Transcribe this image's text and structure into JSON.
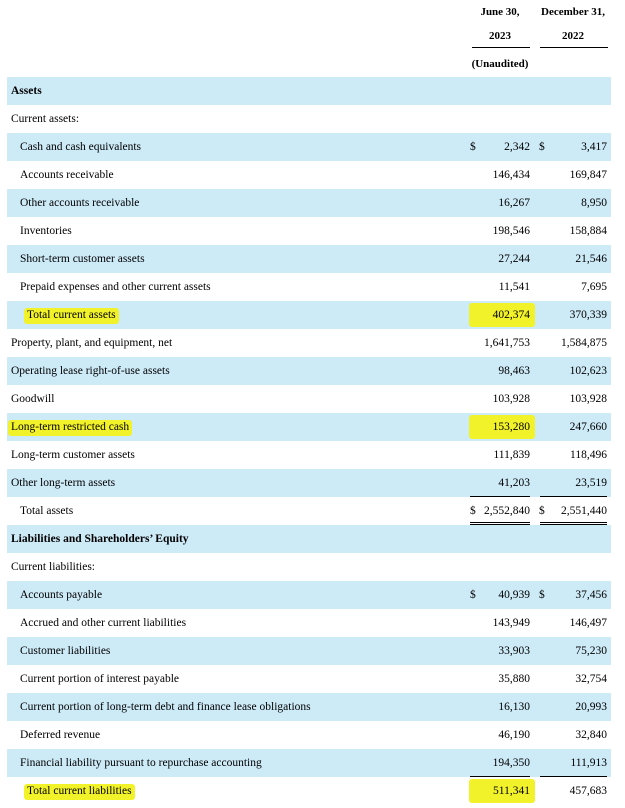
{
  "header": {
    "col1_line1": "June 30,",
    "col1_line2": "2023",
    "col1_note": "(Unaudited)",
    "col2_line1": "December 31,",
    "col2_line2": "2022"
  },
  "rows": [
    {
      "label": "Assets",
      "bold": true,
      "shade": true,
      "indent": 0
    },
    {
      "label": "Current assets:",
      "indent": 0
    },
    {
      "label": "Cash and cash equivalents",
      "shade": true,
      "indent": 1,
      "d1": "$",
      "v1": "2,342",
      "d2": "$",
      "v2": "3,417"
    },
    {
      "label": "Accounts receivable",
      "indent": 1,
      "v1": "146,434",
      "v2": "169,847"
    },
    {
      "label": "Other accounts receivable",
      "shade": true,
      "indent": 1,
      "v1": "16,267",
      "v2": "8,950"
    },
    {
      "label": "Inventories",
      "indent": 1,
      "v1": "198,546",
      "v2": "158,884"
    },
    {
      "label": "Short-term customer assets",
      "shade": true,
      "indent": 1,
      "v1": "27,244",
      "v2": "21,546"
    },
    {
      "label": "Prepaid expenses and other current assets",
      "indent": 1,
      "v1": "11,541",
      "v2": "7,695"
    },
    {
      "label": "Total current assets",
      "shade": true,
      "indent": 2,
      "v1": "402,374",
      "v2": "370,339",
      "highlight_label": true,
      "highlight_v1": true
    },
    {
      "label": "Property, plant, and equipment, net",
      "indent": 0,
      "v1": "1,641,753",
      "v2": "1,584,875"
    },
    {
      "label": "Operating lease right-of-use assets",
      "shade": true,
      "indent": 0,
      "v1": "98,463",
      "v2": "102,623"
    },
    {
      "label": "Goodwill",
      "indent": 0,
      "v1": "103,928",
      "v2": "103,928"
    },
    {
      "label": "Long-term restricted cash",
      "shade": true,
      "indent": 0,
      "v1": "153,280",
      "v2": "247,660",
      "highlight_label": true,
      "highlight_v1": true
    },
    {
      "label": "Long-term customer assets",
      "indent": 0,
      "v1": "111,839",
      "v2": "118,496"
    },
    {
      "label": "Other long-term assets",
      "shade": true,
      "indent": 0,
      "v1": "41,203",
      "v2": "23,519"
    },
    {
      "label": "Total assets",
      "indent": 1,
      "d1": "$",
      "v1": "2,552,840",
      "d2": "$",
      "v2": "2,551,440"
    },
    {
      "label": "Liabilities and Shareholders’ Equity",
      "bold": true,
      "shade": true,
      "indent": 0
    },
    {
      "label": "Current liabilities:",
      "indent": 0
    },
    {
      "label": "Accounts payable",
      "shade": true,
      "indent": 1,
      "d1": "$",
      "v1": "40,939",
      "d2": "$",
      "v2": "37,456"
    },
    {
      "label": "Accrued and other current liabilities",
      "indent": 1,
      "v1": "143,949",
      "v2": "146,497"
    },
    {
      "label": "Customer liabilities",
      "shade": true,
      "indent": 1,
      "v1": "33,903",
      "v2": "75,230"
    },
    {
      "label": "Current portion of interest payable",
      "indent": 1,
      "v1": "35,880",
      "v2": "32,754"
    },
    {
      "label": "Current portion of long-term debt and finance lease obligations",
      "shade": true,
      "indent": 1,
      "v1": "16,130",
      "v2": "20,993"
    },
    {
      "label": "Deferred revenue",
      "indent": 1,
      "v1": "46,190",
      "v2": "32,840"
    },
    {
      "label": "Financial liability pursuant to repurchase accounting",
      "shade": true,
      "indent": 1,
      "v1": "194,350",
      "v2": "111,913"
    },
    {
      "label": "Total current liabilities",
      "indent": 2,
      "v1": "511,341",
      "v2": "457,683",
      "highlight_label": true,
      "highlight_v1": true
    }
  ],
  "colors": {
    "row_shade": "#cdeaf7",
    "highlighter": "#f2f22a"
  }
}
